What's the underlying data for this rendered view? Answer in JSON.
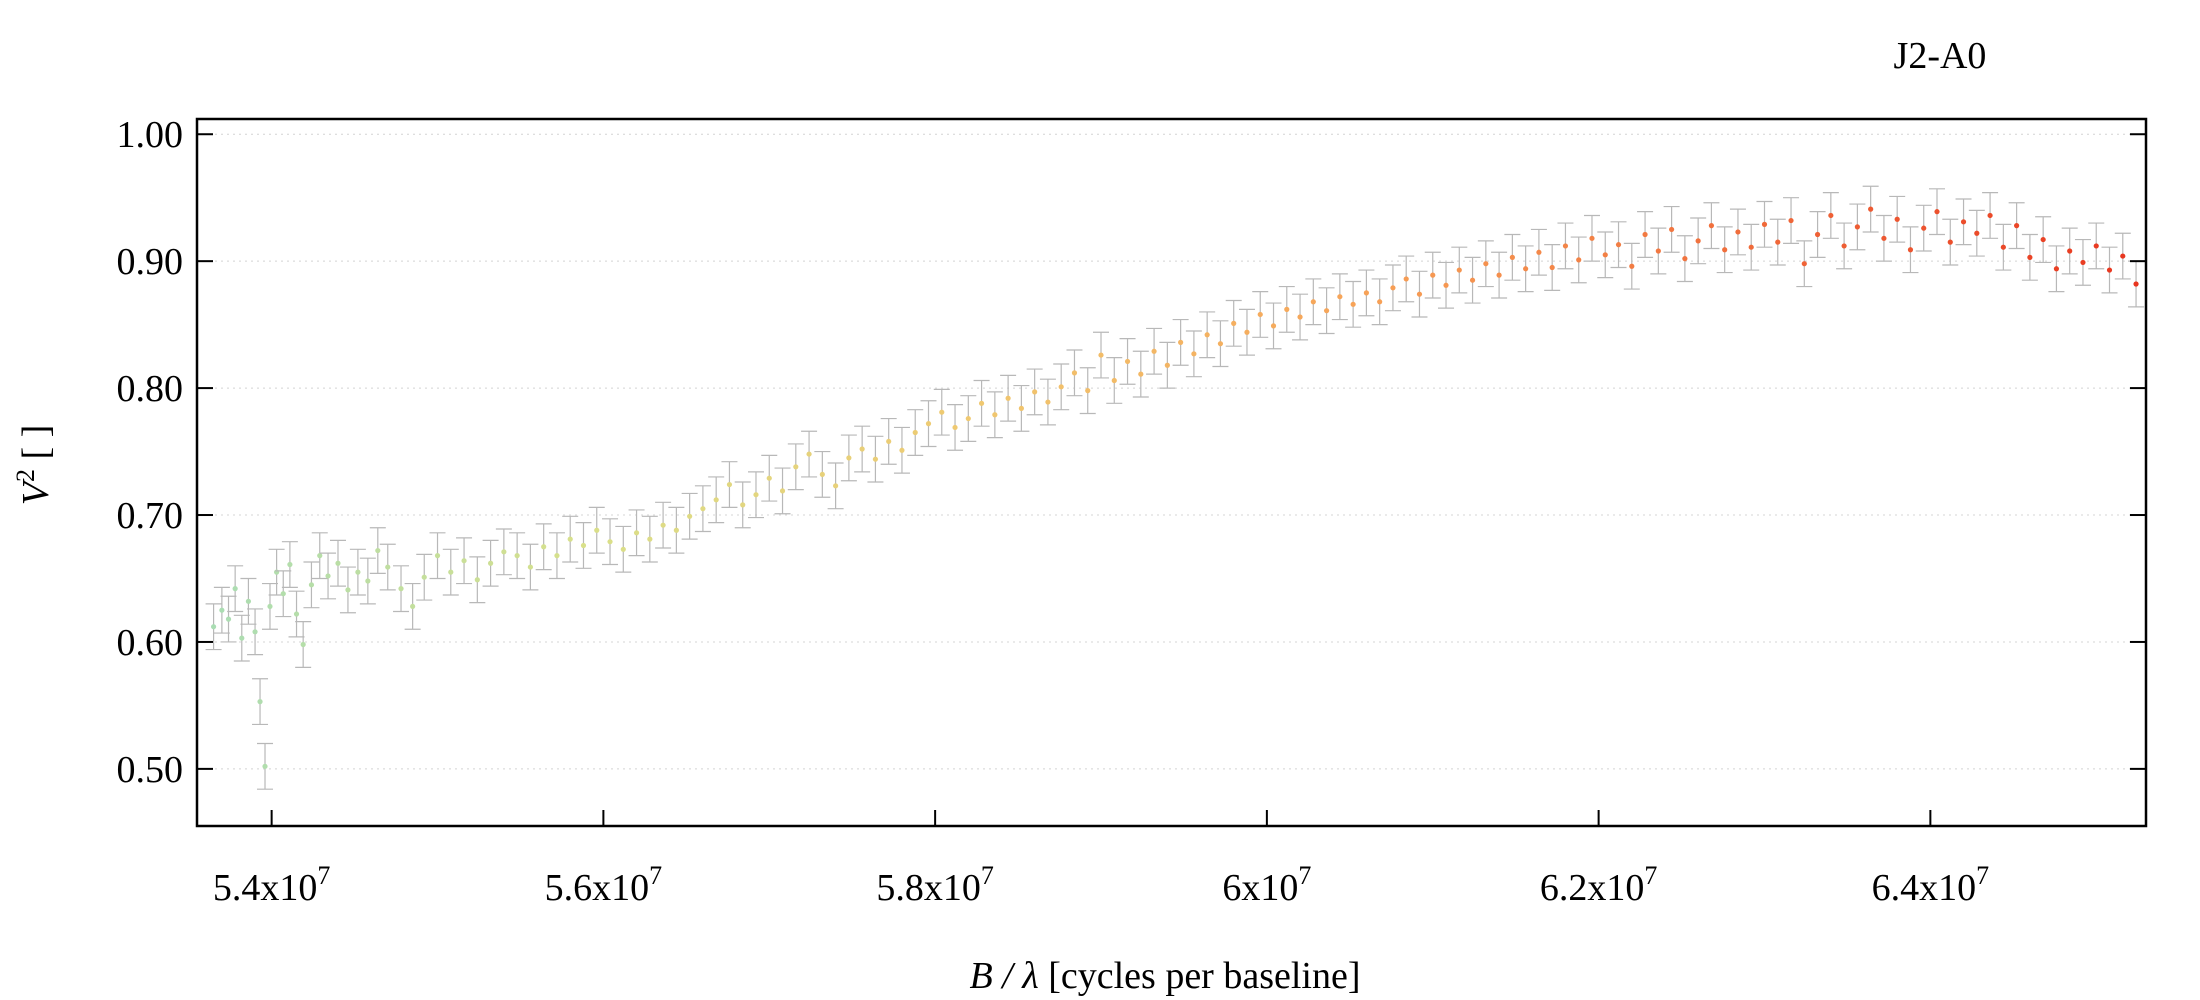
{
  "chart_data": {
    "type": "scatter",
    "title": "J2-A0",
    "xlabel_var": "B / λ",
    "xlabel_unit": " [cycles per baseline]",
    "ylabel_var": "V",
    "ylabel_sup": "2",
    "ylabel_unit": " [ ]",
    "xlim": [
      53550000,
      65300000
    ],
    "ylim": [
      0.455,
      1.012
    ],
    "grid": "horizontal-dotted",
    "legend": "none",
    "x_ticks": [
      {
        "value": 54000000,
        "mantissa": "5.4",
        "exp": "7"
      },
      {
        "value": 56000000,
        "mantissa": "5.6",
        "exp": "7"
      },
      {
        "value": 58000000,
        "mantissa": "5.8",
        "exp": "7"
      },
      {
        "value": 60000000,
        "mantissa": "6",
        "exp": "7"
      },
      {
        "value": 62000000,
        "mantissa": "6.2",
        "exp": "7"
      },
      {
        "value": 64000000,
        "mantissa": "6.4",
        "exp": "7"
      }
    ],
    "y_ticks": [
      {
        "value": 0.5,
        "label": "0.50"
      },
      {
        "value": 0.6,
        "label": "0.60"
      },
      {
        "value": 0.7,
        "label": "0.70"
      },
      {
        "value": 0.8,
        "label": "0.80"
      },
      {
        "value": 0.9,
        "label": "0.90"
      },
      {
        "value": 1.0,
        "label": "1.00"
      }
    ],
    "colors": {
      "errorbar": "#b8b8b8",
      "gradient": [
        "#a8ddb5",
        "#d9e08a",
        "#f0c870",
        "#f7a257",
        "#f06a3a",
        "#e8341e"
      ]
    },
    "error_typical": 0.018,
    "series": [
      {
        "points": [
          [
            53650000,
            0.612
          ],
          [
            53700000,
            0.625
          ],
          [
            53740000,
            0.618
          ],
          [
            53780000,
            0.642
          ],
          [
            53820000,
            0.603
          ],
          [
            53860000,
            0.632
          ],
          [
            53900000,
            0.608
          ],
          [
            53930000,
            0.553
          ],
          [
            53960000,
            0.502
          ],
          [
            53990000,
            0.628
          ],
          [
            54030000,
            0.655
          ],
          [
            54070000,
            0.638
          ],
          [
            54110000,
            0.661
          ],
          [
            54150000,
            0.622
          ],
          [
            54190000,
            0.598
          ],
          [
            54240000,
            0.645
          ],
          [
            54290000,
            0.668
          ],
          [
            54340000,
            0.652
          ],
          [
            54400000,
            0.662
          ],
          [
            54460000,
            0.641
          ],
          [
            54520000,
            0.655
          ],
          [
            54580000,
            0.648
          ],
          [
            54640000,
            0.672
          ],
          [
            54700000,
            0.659
          ],
          [
            54780000,
            0.642
          ],
          [
            54850000,
            0.628
          ],
          [
            54920000,
            0.651
          ],
          [
            55000000,
            0.668
          ],
          [
            55080000,
            0.655
          ],
          [
            55160000,
            0.664
          ],
          [
            55240000,
            0.649
          ],
          [
            55320000,
            0.662
          ],
          [
            55400000,
            0.671
          ],
          [
            55480000,
            0.668
          ],
          [
            55560000,
            0.659
          ],
          [
            55640000,
            0.675
          ],
          [
            55720000,
            0.668
          ],
          [
            55800000,
            0.681
          ],
          [
            55880000,
            0.676
          ],
          [
            55960000,
            0.688
          ],
          [
            56040000,
            0.679
          ],
          [
            56120000,
            0.673
          ],
          [
            56200000,
            0.686
          ],
          [
            56280000,
            0.681
          ],
          [
            56360000,
            0.692
          ],
          [
            56440000,
            0.688
          ],
          [
            56520000,
            0.699
          ],
          [
            56600000,
            0.705
          ],
          [
            56680000,
            0.712
          ],
          [
            56760000,
            0.724
          ],
          [
            56840000,
            0.708
          ],
          [
            56920000,
            0.716
          ],
          [
            57000000,
            0.729
          ],
          [
            57080000,
            0.719
          ],
          [
            57160000,
            0.738
          ],
          [
            57240000,
            0.748
          ],
          [
            57320000,
            0.732
          ],
          [
            57400000,
            0.723
          ],
          [
            57480000,
            0.745
          ],
          [
            57560000,
            0.752
          ],
          [
            57640000,
            0.744
          ],
          [
            57720000,
            0.758
          ],
          [
            57800000,
            0.751
          ],
          [
            57880000,
            0.765
          ],
          [
            57960000,
            0.772
          ],
          [
            58040000,
            0.781
          ],
          [
            58120000,
            0.769
          ],
          [
            58200000,
            0.776
          ],
          [
            58280000,
            0.788
          ],
          [
            58360000,
            0.779
          ],
          [
            58440000,
            0.792
          ],
          [
            58520000,
            0.784
          ],
          [
            58600000,
            0.797
          ],
          [
            58680000,
            0.789
          ],
          [
            58760000,
            0.801
          ],
          [
            58840000,
            0.812
          ],
          [
            58920000,
            0.798
          ],
          [
            59000000,
            0.826
          ],
          [
            59080000,
            0.806
          ],
          [
            59160000,
            0.821
          ],
          [
            59240000,
            0.811
          ],
          [
            59320000,
            0.829
          ],
          [
            59400000,
            0.818
          ],
          [
            59480000,
            0.836
          ],
          [
            59560000,
            0.827
          ],
          [
            59640000,
            0.842
          ],
          [
            59720000,
            0.835
          ],
          [
            59800000,
            0.851
          ],
          [
            59880000,
            0.844
          ],
          [
            59960000,
            0.858
          ],
          [
            60040000,
            0.849
          ],
          [
            60120000,
            0.862
          ],
          [
            60200000,
            0.856
          ],
          [
            60280000,
            0.868
          ],
          [
            60360000,
            0.861
          ],
          [
            60440000,
            0.872
          ],
          [
            60520000,
            0.866
          ],
          [
            60600000,
            0.875
          ],
          [
            60680000,
            0.868
          ],
          [
            60760000,
            0.879
          ],
          [
            60840000,
            0.886
          ],
          [
            60920000,
            0.874
          ],
          [
            61000000,
            0.889
          ],
          [
            61080000,
            0.881
          ],
          [
            61160000,
            0.893
          ],
          [
            61240000,
            0.885
          ],
          [
            61320000,
            0.898
          ],
          [
            61400000,
            0.889
          ],
          [
            61480000,
            0.903
          ],
          [
            61560000,
            0.894
          ],
          [
            61640000,
            0.907
          ],
          [
            61720000,
            0.895
          ],
          [
            61800000,
            0.912
          ],
          [
            61880000,
            0.901
          ],
          [
            61960000,
            0.918
          ],
          [
            62040000,
            0.905
          ],
          [
            62120000,
            0.913
          ],
          [
            62200000,
            0.896
          ],
          [
            62280000,
            0.921
          ],
          [
            62360000,
            0.908
          ],
          [
            62440000,
            0.925
          ],
          [
            62520000,
            0.902
          ],
          [
            62600000,
            0.916
          ],
          [
            62680000,
            0.928
          ],
          [
            62760000,
            0.909
          ],
          [
            62840000,
            0.923
          ],
          [
            62920000,
            0.911
          ],
          [
            63000000,
            0.929
          ],
          [
            63080000,
            0.915
          ],
          [
            63160000,
            0.932
          ],
          [
            63240000,
            0.898
          ],
          [
            63320000,
            0.921
          ],
          [
            63400000,
            0.936
          ],
          [
            63480000,
            0.912
          ],
          [
            63560000,
            0.927
          ],
          [
            63640000,
            0.941
          ],
          [
            63720000,
            0.918
          ],
          [
            63800000,
            0.933
          ],
          [
            63880000,
            0.909
          ],
          [
            63960000,
            0.926
          ],
          [
            64040000,
            0.939
          ],
          [
            64120000,
            0.915
          ],
          [
            64200000,
            0.931
          ],
          [
            64280000,
            0.922
          ],
          [
            64360000,
            0.936
          ],
          [
            64440000,
            0.911
          ],
          [
            64520000,
            0.928
          ],
          [
            64600000,
            0.903
          ],
          [
            64680000,
            0.917
          ],
          [
            64760000,
            0.894
          ],
          [
            64840000,
            0.908
          ],
          [
            64920000,
            0.899
          ],
          [
            65000000,
            0.912
          ],
          [
            65080000,
            0.893
          ],
          [
            65160000,
            0.904
          ],
          [
            65240000,
            0.882
          ]
        ]
      }
    ]
  }
}
